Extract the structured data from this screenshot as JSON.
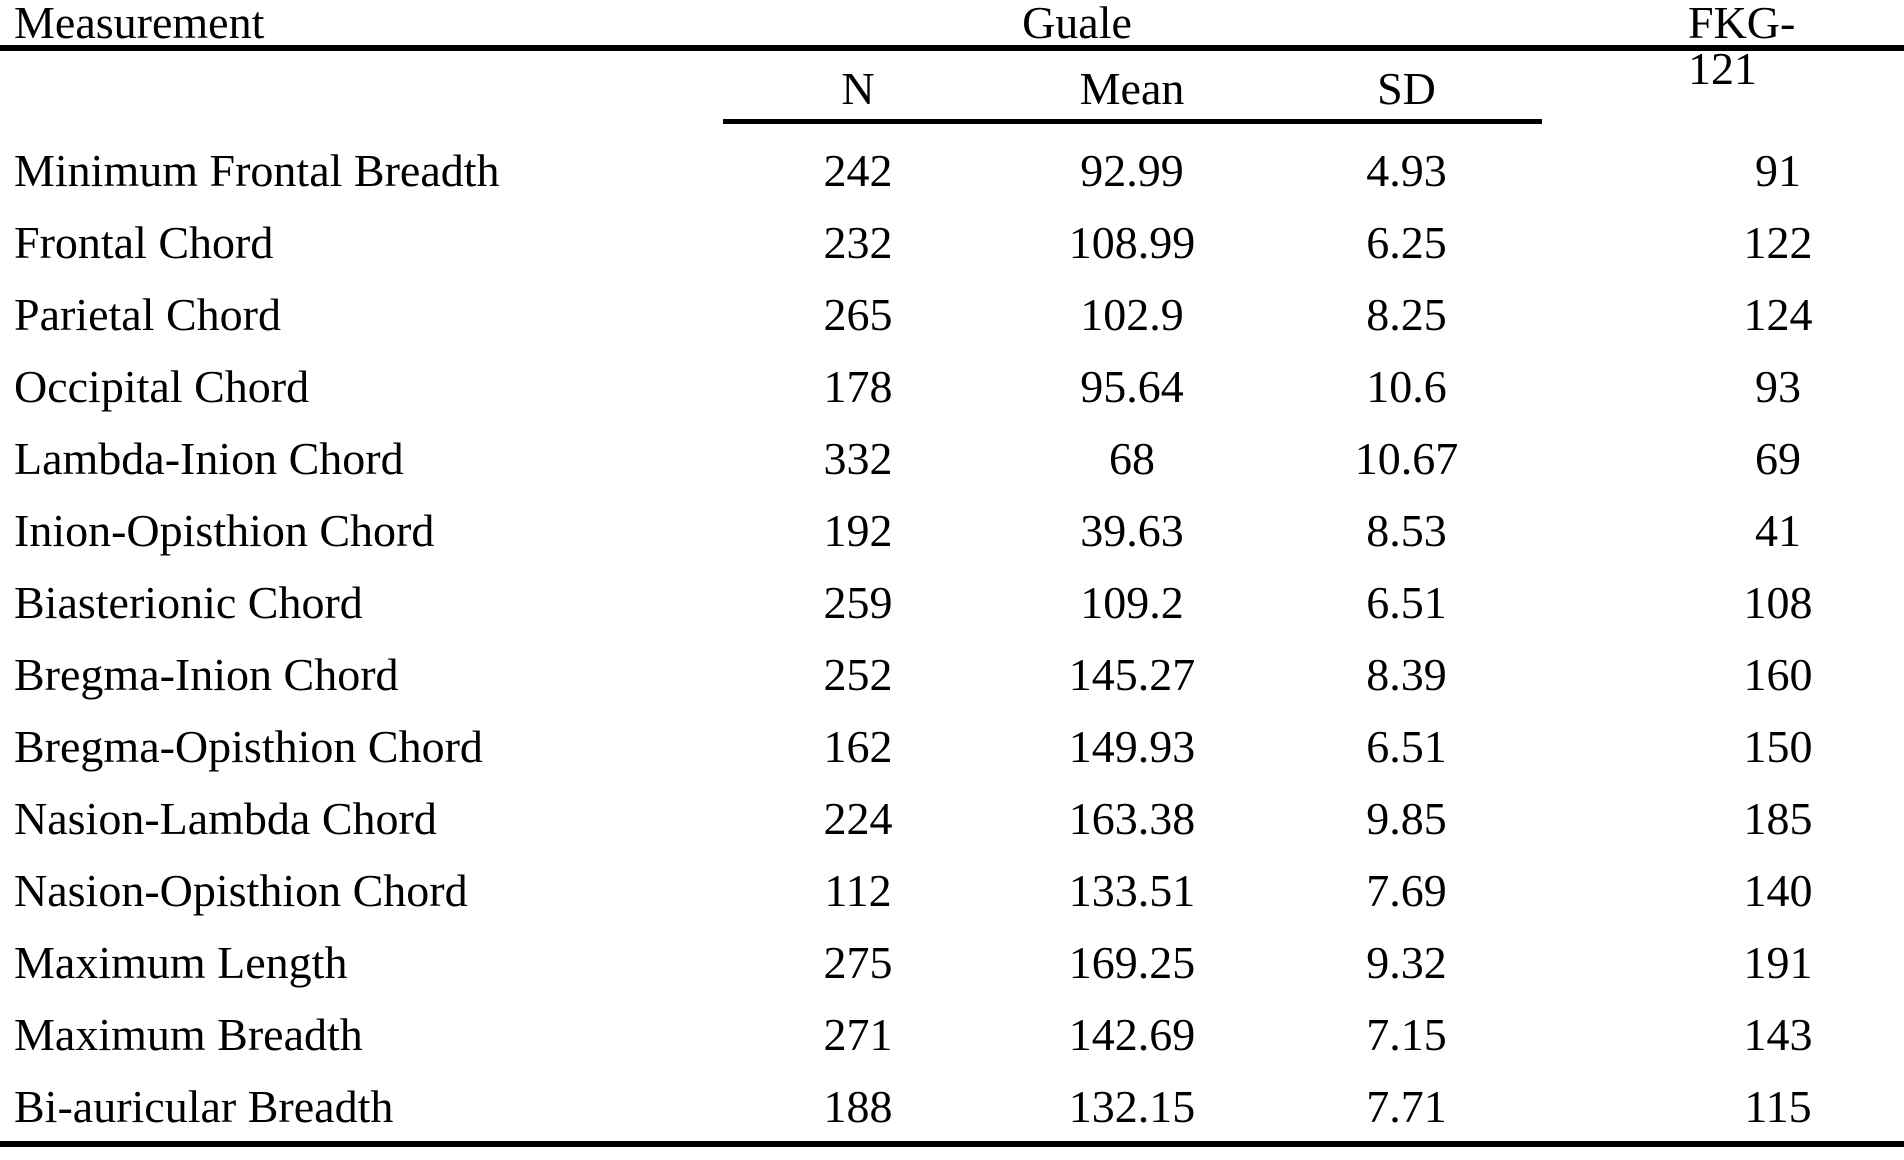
{
  "colors": {
    "background": "#ffffff",
    "text": "#000000",
    "rule": "#000000"
  },
  "table": {
    "measurement_header": "Measurement",
    "group_header": "Guale",
    "fkg_header": "FKG-121",
    "subheaders": {
      "n": "N",
      "mean": "Mean",
      "sd": "SD"
    },
    "rows": [
      {
        "label": "Minimum Frontal Breadth",
        "n": "242",
        "mean": "92.99",
        "sd": "4.93",
        "fkg": "91"
      },
      {
        "label": "Frontal Chord",
        "n": "232",
        "mean": "108.99",
        "sd": "6.25",
        "fkg": "122"
      },
      {
        "label": "Parietal Chord",
        "n": "265",
        "mean": "102.9",
        "sd": "8.25",
        "fkg": "124"
      },
      {
        "label": "Occipital Chord",
        "n": "178",
        "mean": "95.64",
        "sd": "10.6",
        "fkg": "93"
      },
      {
        "label": "Lambda-Inion Chord",
        "n": "332",
        "mean": "68",
        "sd": "10.67",
        "fkg": "69"
      },
      {
        "label": "Inion-Opisthion Chord",
        "n": "192",
        "mean": "39.63",
        "sd": "8.53",
        "fkg": "41"
      },
      {
        "label": "Biasterionic Chord",
        "n": "259",
        "mean": "109.2",
        "sd": "6.51",
        "fkg": "108"
      },
      {
        "label": "Bregma-Inion Chord",
        "n": "252",
        "mean": "145.27",
        "sd": "8.39",
        "fkg": "160"
      },
      {
        "label": "Bregma-Opisthion Chord",
        "n": "162",
        "mean": "149.93",
        "sd": "6.51",
        "fkg": "150"
      },
      {
        "label": "Nasion-Lambda Chord",
        "n": "224",
        "mean": "163.38",
        "sd": "9.85",
        "fkg": "185"
      },
      {
        "label": "Nasion-Opisthion Chord",
        "n": "112",
        "mean": "133.51",
        "sd": "7.69",
        "fkg": "140"
      },
      {
        "label": "Maximum Length",
        "n": "275",
        "mean": "169.25",
        "sd": "9.32",
        "fkg": "191"
      },
      {
        "label": "Maximum Breadth",
        "n": "271",
        "mean": "142.69",
        "sd": "7.15",
        "fkg": "143"
      },
      {
        "label": "Bi-auricular Breadth",
        "n": "188",
        "mean": "132.15",
        "sd": "7.71",
        "fkg": "115"
      }
    ]
  }
}
